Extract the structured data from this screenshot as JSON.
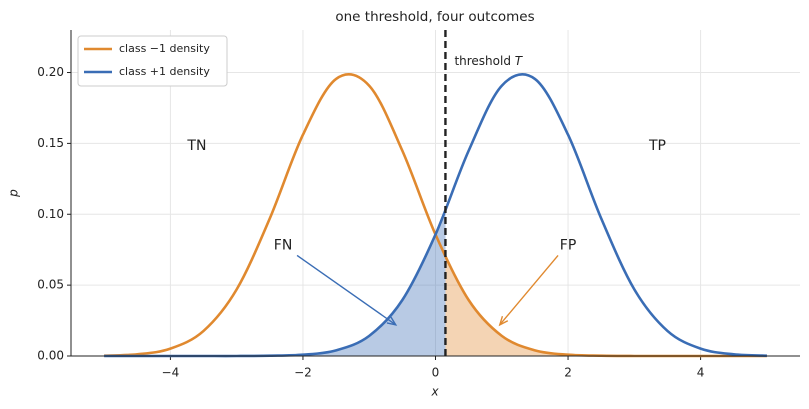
{
  "chart_data": {
    "type": "line",
    "title": "one threshold, four outcomes",
    "x_label": "x",
    "y_label": "p",
    "x": [
      -5,
      -4.5,
      -4,
      -3.5,
      -3,
      -2.5,
      -2,
      -1.5,
      -1,
      -0.5,
      0,
      0.5,
      1,
      1.5,
      2,
      2.5,
      3,
      3.5,
      4,
      4.5,
      5
    ],
    "series": [
      {
        "name": "class −1 density",
        "color": "#e0892f",
        "values": [
          0.0002,
          0.0012,
          0.0052,
          0.0177,
          0.047,
          0.0971,
          0.1561,
          0.1955,
          0.1907,
          0.1448,
          0.0857,
          0.0395,
          0.0142,
          0.004,
          0.0009,
          0.0002,
          0,
          0,
          0,
          0,
          0
        ]
      },
      {
        "name": "class +1 density",
        "color": "#3a6db5",
        "values": [
          0,
          0,
          0,
          0,
          0,
          0.0002,
          0.0009,
          0.004,
          0.0142,
          0.0395,
          0.0857,
          0.1448,
          0.1907,
          0.1955,
          0.1561,
          0.0971,
          0.047,
          0.0177,
          0.0052,
          0.0012,
          0.0002
        ]
      }
    ],
    "threshold": 0.15,
    "threshold_label": "threshold",
    "threshold_symbol": "T",
    "annotations": [
      {
        "text": "TN",
        "color": "#e0892f"
      },
      {
        "text": "TP",
        "color": "#3a6db5"
      },
      {
        "text": "FN",
        "color": "#3a6db5"
      },
      {
        "text": "FP",
        "color": "#e0892f"
      }
    ],
    "xlim": [
      -5.5,
      5.5
    ],
    "ylim": [
      0,
      0.23
    ],
    "xticks": [
      {
        "value": -4,
        "label": "−4"
      },
      {
        "value": -2,
        "label": "−2"
      },
      0,
      2,
      4
    ],
    "yticks": [
      {
        "value": 0,
        "label": "0.00"
      },
      {
        "value": 0.05,
        "label": "0.05"
      },
      {
        "value": 0.1,
        "label": "0.10"
      },
      {
        "value": 0.15,
        "label": "0.15"
      },
      {
        "value": 0.2,
        "label": "0.20"
      }
    ],
    "grid": true,
    "legend": "upper left"
  }
}
